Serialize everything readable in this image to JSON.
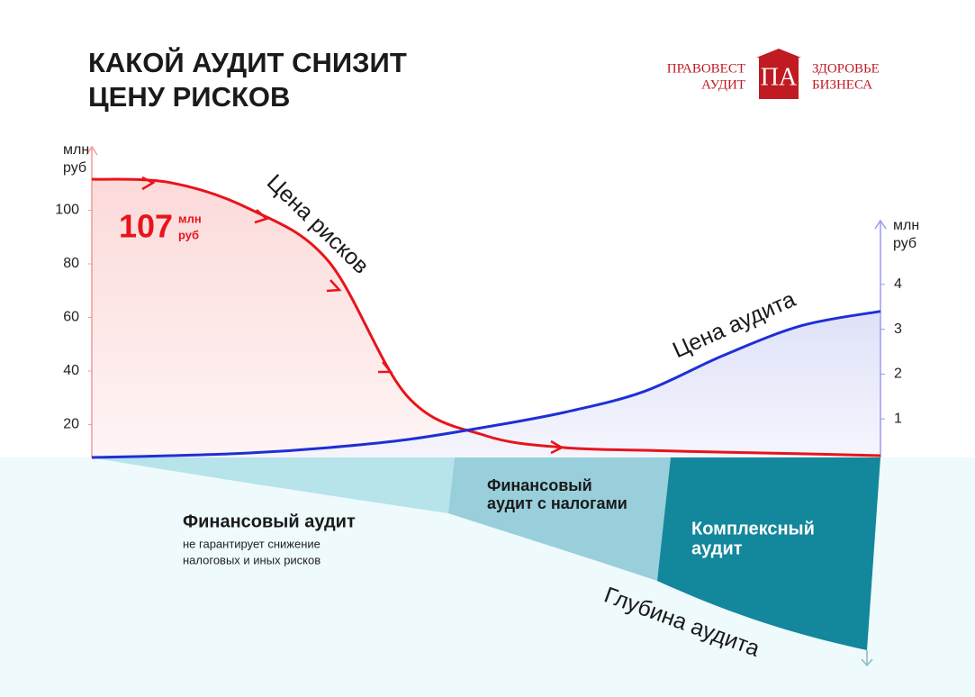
{
  "logo": {
    "left": [
      "ПРАВОВЕСТ",
      "АУДИТ"
    ],
    "mark": "ПА",
    "right": [
      "ЗДОРОВЬЕ",
      "БИЗНЕСА"
    ]
  },
  "chart_data": {
    "type": "line",
    "title": [
      "КАКОЙ АУДИТ СНИЗИТ",
      "ЦЕНУ РИСКОВ"
    ],
    "y_label": [
      "млн",
      "руб"
    ],
    "y2_label": [
      "млн",
      "руб"
    ],
    "categories": [
      null,
      null,
      null,
      null,
      null,
      null,
      null,
      null,
      null,
      null,
      null
    ],
    "series": [
      {
        "name": "Цена рисков",
        "color": "#e8141c",
        "values": [
          111.6,
          110.3,
          100.5,
          81,
          30.6,
          15.8,
          11.4,
          10.4,
          9.7,
          9.1,
          8.4
        ]
      },
      {
        "name": "Цена аудита",
        "color": "#1f2fd6",
        "axis": "y2",
        "values": [
          0.14,
          0.18,
          0.24,
          0.36,
          0.54,
          0.82,
          1.15,
          1.61,
          2.41,
          3.08,
          3.4
        ]
      }
    ],
    "ylim": [
      0,
      120
    ],
    "yticks": [
      20,
      40,
      60,
      80,
      100
    ],
    "y2lim": [
      0,
      5
    ],
    "y2ticks": [
      1,
      2,
      3,
      4
    ],
    "peak_label": {
      "value": 107,
      "unit": [
        "млн",
        "руб"
      ]
    },
    "depth": {
      "label": "Глубина аудита",
      "levels": [
        {
          "name": "Финансовый аудит",
          "note": [
            "не гарантирует снижение",
            "налоговых и иных рисков"
          ]
        },
        {
          "name": [
            "Финансовый",
            "аудит с налогами"
          ]
        },
        {
          "name": [
            "Комплексный",
            "аудит"
          ]
        }
      ]
    }
  }
}
